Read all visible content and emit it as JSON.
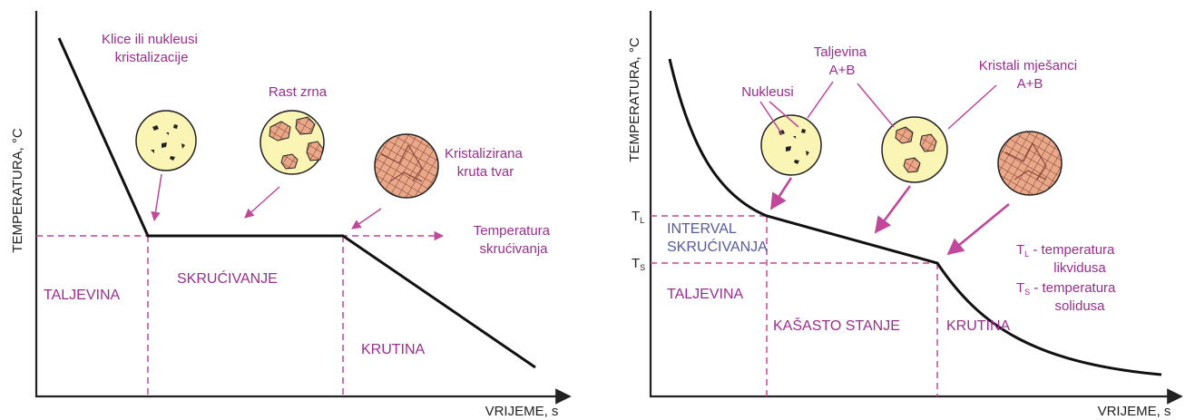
{
  "left": {
    "y_axis_label": "TEMPERATURA, °C",
    "x_axis_label": "VRIJEME, s",
    "nuclei_label": [
      "Klice ili nukleusi",
      "kristalizacije"
    ],
    "growth_label": "Rast zrna",
    "solid_label": [
      "Kristalizirana",
      "kruta tvar"
    ],
    "temperature_label": [
      "Temperatura",
      "skrućivanja"
    ],
    "regions": [
      "TALJEVINA",
      "SKRUĆIVANJE",
      "KRUTINA"
    ]
  },
  "right": {
    "y_axis_label": "TEMPERATURA, °C",
    "x_axis_label": "VRIJEME, s",
    "nuclei_label": "Nukleusi",
    "melt_label": [
      "Taljevina",
      "A+B"
    ],
    "crystals_label": [
      "Kristali mješanci",
      "A+B"
    ],
    "tl": {
      "symbol": "T",
      "subscript": "L"
    },
    "ts": {
      "symbol": "T",
      "subscript": "S"
    },
    "interval_label": [
      "INTERVAL",
      "SKRUĆIVANJA"
    ],
    "regions": [
      "TALJEVINA",
      "KAŠASTO STANJE",
      "KRUTINA"
    ],
    "legend": [
      {
        "symbol": "T",
        "subscript": "L",
        "text": " - temperatura",
        "line2": "likvidusa"
      },
      {
        "symbol": "T",
        "subscript": "S",
        "text": " - temperatura",
        "line2": "solidusa"
      }
    ]
  }
}
